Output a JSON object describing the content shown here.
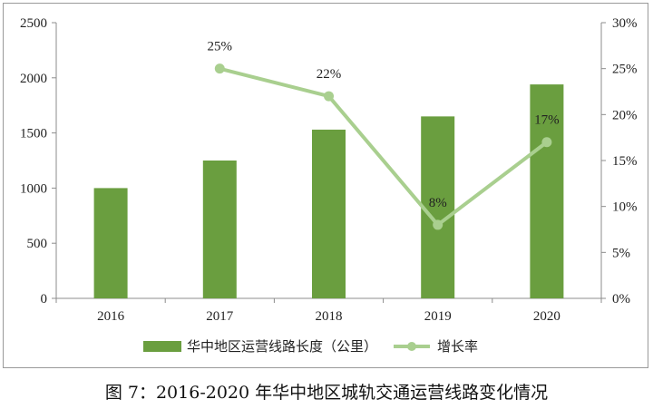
{
  "chart_data": {
    "type": "bar+line",
    "categories": [
      "2016",
      "2017",
      "2018",
      "2019",
      "2020"
    ],
    "series": [
      {
        "name": "华中地区运营线路长度（公里）",
        "type": "bar",
        "axis": "left",
        "color": "#6a9e3f",
        "values": [
          1000,
          1250,
          1530,
          1650,
          1940
        ]
      },
      {
        "name": "增长率",
        "type": "line",
        "axis": "right",
        "color": "#a9cf8f",
        "values": [
          null,
          25,
          22,
          8,
          17
        ],
        "labels": [
          null,
          "25%",
          "22%",
          "8%",
          "17%"
        ]
      }
    ],
    "y_left": {
      "min": 0,
      "max": 2500,
      "ticks": [
        "0",
        "500",
        "1000",
        "1500",
        "2000",
        "2500"
      ]
    },
    "y_right": {
      "min": 0,
      "max": 30,
      "ticks": [
        "0%",
        "5%",
        "10%",
        "15%",
        "20%",
        "25%",
        "30%"
      ]
    },
    "legend_position": "bottom",
    "grid": false
  },
  "caption": "图 7：2016-2020 年华中地区城轨交通运营线路变化情况"
}
